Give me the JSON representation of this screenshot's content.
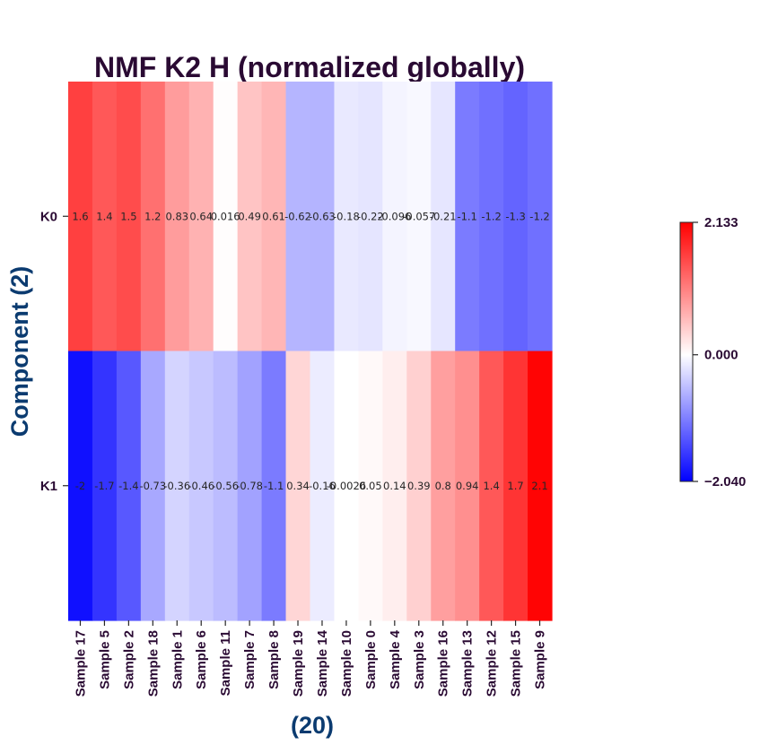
{
  "chart_data": {
    "type": "heatmap",
    "title": "NMF K2 H (normalized globally)",
    "xlabel": "(20)",
    "ylabel": "Component (2)",
    "rows": [
      "K0",
      "K1"
    ],
    "columns": [
      "Sample 17",
      "Sample 5",
      "Sample 2",
      "Sample 18",
      "Sample 1",
      "Sample 6",
      "Sample 11",
      "Sample 7",
      "Sample 8",
      "Sample 19",
      "Sample 14",
      "Sample 10",
      "Sample 0",
      "Sample 4",
      "Sample 3",
      "Sample 16",
      "Sample 13",
      "Sample 12",
      "Sample 15",
      "Sample 9"
    ],
    "values": [
      [
        1.6,
        1.4,
        1.5,
        1.2,
        0.83,
        0.64,
        0.016,
        0.49,
        0.61,
        -0.62,
        -0.63,
        -0.18,
        -0.22,
        -0.096,
        -0.057,
        -0.21,
        -1.1,
        -1.2,
        -1.3,
        -1.2
      ],
      [
        -2,
        -1.7,
        -1.4,
        -0.73,
        -0.36,
        -0.46,
        -0.56,
        -0.78,
        -1.1,
        0.34,
        -0.16,
        -0.0026,
        0.05,
        0.14,
        0.39,
        0.8,
        0.94,
        1.4,
        1.7,
        2.1
      ]
    ],
    "labels": [
      [
        "1.6",
        "1.4",
        "1.5",
        "1.2",
        "0.83",
        "0.64",
        "0.016",
        "0.49",
        "0.61",
        "-0.62",
        "-0.63",
        "-0.18",
        "-0.22",
        "-0.096",
        "-0.057",
        "-0.21",
        "-1.1",
        "-1.2",
        "-1.3",
        "-1.2"
      ],
      [
        "-2",
        "-1.7",
        "-1.4",
        "-0.73",
        "-0.36",
        "-0.46",
        "-0.56",
        "-0.78",
        "-1.1",
        "0.34",
        "-0.16",
        "-0.0026",
        "0.05",
        "0.14",
        "0.39",
        "0.8",
        "0.94",
        "1.4",
        "1.7",
        "2.1"
      ]
    ],
    "colorbar": {
      "min": -2.04,
      "max": 2.133,
      "ticks": [
        "2.133",
        "0.000",
        "−2.040"
      ],
      "tick_values": [
        2.133,
        0.0,
        -2.04
      ],
      "colormap": "bwr",
      "colors": {
        "low": "#0000ff",
        "mid": "#ffffff",
        "high": "#ff0000"
      }
    }
  }
}
